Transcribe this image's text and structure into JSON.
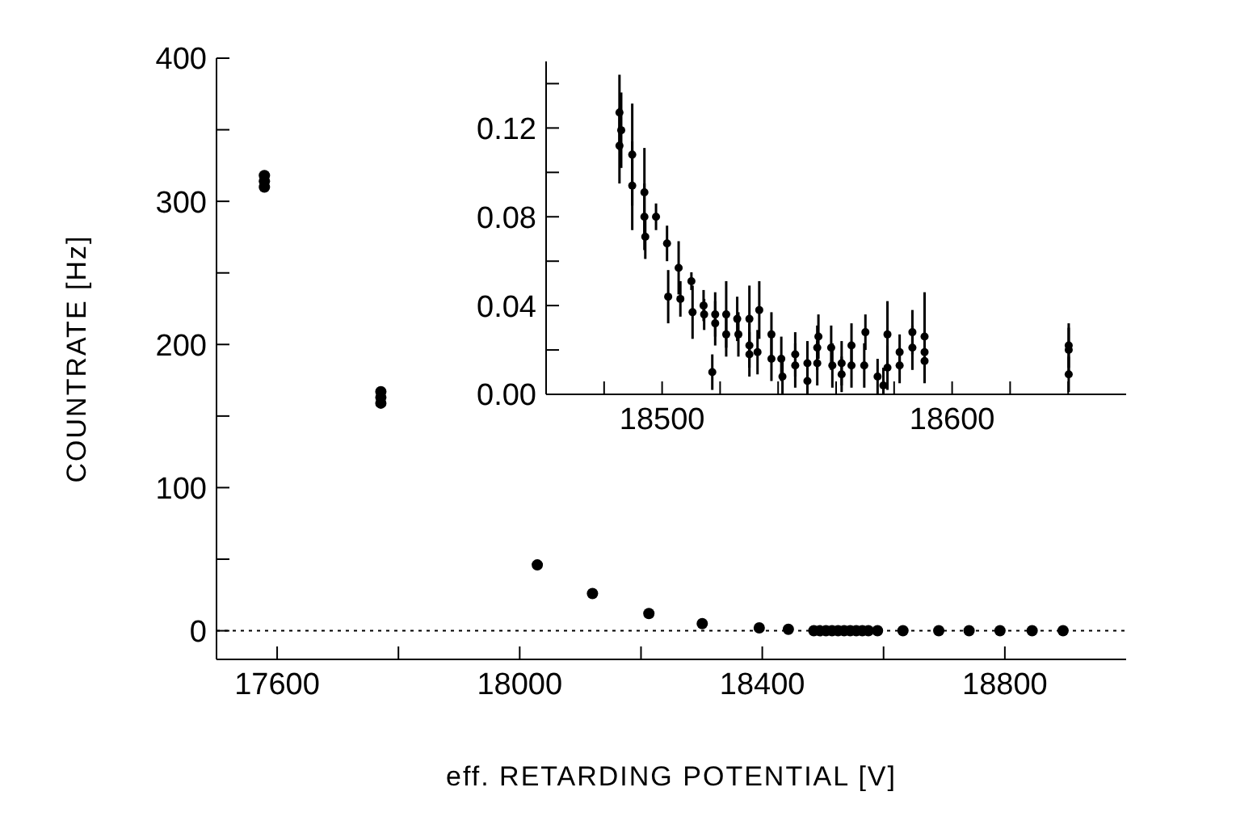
{
  "chart_data": [
    {
      "type": "scatter",
      "xlabel": "eff. RETARDING POTENTIAL [V]",
      "ylabel": "COUNTRATE [Hz]",
      "marker": "circle",
      "xlim": [
        17500,
        19000
      ],
      "ylim": [
        -20,
        400
      ],
      "xticks": [
        17600,
        {
          "value": 17800,
          "label": null
        },
        18000,
        {
          "value": 18200,
          "label": null
        },
        18400,
        {
          "value": 18600,
          "label": null
        },
        18800
      ],
      "yticks": [
        0,
        {
          "value": 50,
          "label": null
        },
        100,
        {
          "value": 150,
          "label": null
        },
        200,
        {
          "value": 250,
          "label": null
        },
        300,
        {
          "value": 350,
          "label": null
        },
        400
      ],
      "ref_lines": [
        {
          "axis": "y",
          "value": 0,
          "color": "#000000",
          "line_style": "dotted"
        }
      ],
      "series": [
        {
          "color": "#000000",
          "x": [
            17579,
            17579,
            17579,
            17771,
            17771,
            17771,
            18029,
            18120,
            18213,
            18301,
            18395,
            18443,
            18485,
            18495,
            18505,
            18515,
            18525,
            18535,
            18545,
            18555,
            18565,
            18575,
            18590,
            18632,
            18691,
            18741,
            18792,
            18845,
            18896
          ],
          "values": [
            318,
            314,
            310,
            167,
            163,
            159,
            46,
            26,
            12,
            5,
            2,
            1,
            0,
            0,
            0,
            0,
            0,
            0,
            0,
            0,
            0,
            0,
            0,
            0,
            0,
            0,
            0,
            0,
            0
          ]
        }
      ]
    },
    {
      "type": "scatter",
      "marker": "circle",
      "xlim": [
        18460,
        18660
      ],
      "ylim": [
        0,
        0.15
      ],
      "xticks": [
        {
          "value": 18480,
          "label": null
        },
        18500,
        {
          "value": 18520,
          "label": null
        },
        {
          "value": 18540,
          "label": null
        },
        {
          "value": 18560,
          "label": null
        },
        {
          "value": 18580,
          "label": null
        },
        18600,
        {
          "value": 18620,
          "label": null
        },
        {
          "value": 18640,
          "label": null
        }
      ],
      "yticks": [
        {
          "value": 0,
          "label": "0.00"
        },
        {
          "value": 0.02,
          "label": null
        },
        {
          "value": 0.04,
          "label": "0.04"
        },
        {
          "value": 0.06,
          "label": null
        },
        {
          "value": 0.08,
          "label": "0.08"
        },
        {
          "value": 0.1,
          "label": null
        },
        {
          "value": 0.12,
          "label": "0.12"
        },
        {
          "value": 0.14,
          "label": null
        }
      ],
      "series": [
        {
          "color": "#000000",
          "x": [
            18485.3,
            18485.9,
            18485.3,
            18489.7,
            18489.7,
            18493.9,
            18493.9,
            18494.2,
            18497.9,
            18501.7,
            18502.1,
            18505.7,
            18506.3,
            18510.1,
            18510.5,
            18514.3,
            18514.5,
            18517.3,
            18518.3,
            18518.3,
            18522.1,
            18522.1,
            18525.9,
            18526.3,
            18530.1,
            18530.1,
            18530.1,
            18533.5,
            18532.9,
            18537.7,
            18537.7,
            18541.1,
            18541.5,
            18545.9,
            18545.9,
            18550.1,
            18550.1,
            18553.9,
            18553.5,
            18553.5,
            18558.3,
            18558.7,
            18561.9,
            18561.9,
            18565.3,
            18565.3,
            18570.1,
            18569.7,
            18574.3,
            18577.7,
            18577.7,
            18576.3,
            18581.9,
            18581.9,
            18586.3,
            18586.3,
            18590.5,
            18590.5,
            18590.5,
            18640.2,
            18640.2,
            18640.2
          ],
          "values": [
            0.127,
            0.119,
            0.112,
            0.108,
            0.094,
            0.091,
            0.08,
            0.071,
            0.08,
            0.068,
            0.044,
            0.057,
            0.043,
            0.051,
            0.037,
            0.04,
            0.036,
            0.01,
            0.036,
            0.032,
            0.036,
            0.027,
            0.034,
            0.027,
            0.034,
            0.022,
            0.018,
            0.038,
            0.019,
            0.027,
            0.016,
            0.016,
            0.008,
            0.018,
            0.013,
            0.014,
            0.006,
            0.026,
            0.021,
            0.014,
            0.021,
            0.013,
            0.014,
            0.009,
            0.022,
            0.013,
            0.028,
            0.013,
            0.008,
            0.027,
            0.012,
            0.004,
            0.019,
            0.013,
            0.028,
            0.021,
            0.026,
            0.019,
            0.015,
            0.022,
            0.02,
            0.009
          ],
          "errors": [
            0.017,
            0.017,
            0.017,
            0.023,
            0.02,
            0.02,
            0.015,
            0.01,
            0.006,
            0.008,
            0.012,
            0.012,
            0.008,
            0.004,
            0.012,
            0.007,
            0.007,
            0.008,
            0.01,
            0.01,
            0.015,
            0.01,
            0.01,
            0.01,
            0.015,
            0.01,
            0.01,
            0.013,
            0.01,
            0.01,
            0.01,
            0.01,
            0.008,
            0.01,
            0.01,
            0.01,
            0.006,
            0.01,
            0.01,
            0.01,
            0.01,
            0.01,
            0.01,
            0.008,
            0.01,
            0.01,
            0.008,
            0.01,
            0.008,
            0.015,
            0.01,
            [
              0,
              0.012
            ],
            0.008,
            0.008,
            0.01,
            0.01,
            0.02,
            0.01,
            0.01,
            0.01,
            0.01,
            0.008
          ]
        }
      ]
    }
  ]
}
